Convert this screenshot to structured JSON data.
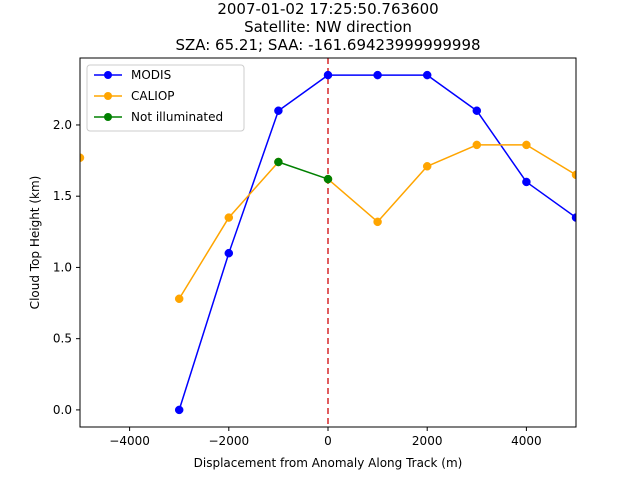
{
  "chart_data": {
    "type": "line",
    "title_lines": [
      "2007-01-02 17:25:50.763600",
      "Satellite: NW direction",
      "SZA: 65.21; SAA: -161.69423999999998"
    ],
    "xlabel": "Displacement from Anomaly Along Track (m)",
    "ylabel": "Cloud Top Height (km)",
    "xlim": [
      -5000,
      5000
    ],
    "ylim": [
      -0.12,
      2.47
    ],
    "x_ticks": [
      -4000,
      -2000,
      0,
      2000,
      4000
    ],
    "x_tick_labels": [
      "−4000",
      "−2000",
      "0",
      "2000",
      "4000"
    ],
    "y_ticks": [
      0.0,
      0.5,
      1.0,
      1.5,
      2.0
    ],
    "y_tick_labels": [
      "0.0",
      "0.5",
      "1.0",
      "1.5",
      "2.0"
    ],
    "grid": false,
    "legend_position": "upper-left",
    "reference_line": {
      "x": 0,
      "color": "#d62728",
      "style": "dashed"
    },
    "series": [
      {
        "name": "MODIS",
        "color": "#0000ff",
        "x": [
          -3000,
          -2000,
          -1000,
          0,
          1000,
          2000,
          3000,
          4000,
          5000
        ],
        "y": [
          0.0,
          1.1,
          2.1,
          2.35,
          2.35,
          2.35,
          2.1,
          1.6,
          1.35
        ]
      },
      {
        "name": "CALIOP",
        "color": "#ffa500",
        "x": [
          -5000,
          -3000,
          -2000,
          -1000,
          0,
          1000,
          2000,
          3000,
          4000,
          5000
        ],
        "y": [
          1.77,
          0.78,
          1.35,
          1.74,
          1.62,
          1.32,
          1.71,
          1.86,
          1.86,
          1.65
        ],
        "segments": [
          [
            -3000,
            -2000,
            -1000
          ],
          [
            0,
            1000,
            2000,
            3000,
            4000,
            5000
          ]
        ]
      },
      {
        "name": "Not illuminated",
        "color": "#008000",
        "x": [
          -1000,
          0
        ],
        "y": [
          1.74,
          1.62
        ]
      }
    ]
  }
}
